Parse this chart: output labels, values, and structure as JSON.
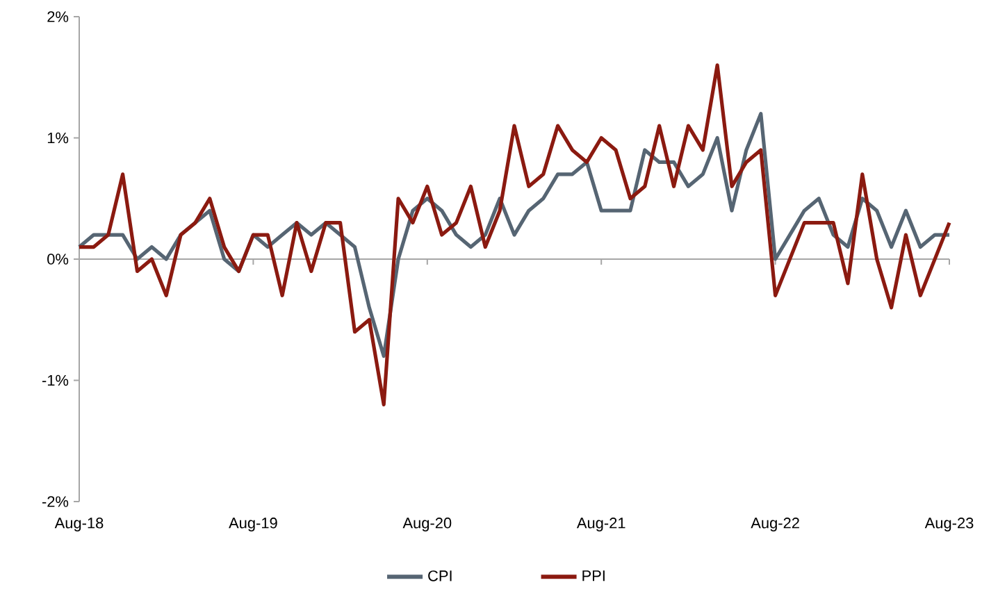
{
  "chart_data": {
    "type": "line",
    "x": [
      "2018-08",
      "2018-09",
      "2018-10",
      "2018-11",
      "2018-12",
      "2019-01",
      "2019-02",
      "2019-03",
      "2019-04",
      "2019-05",
      "2019-06",
      "2019-07",
      "2019-08",
      "2019-09",
      "2019-10",
      "2019-11",
      "2019-12",
      "2020-01",
      "2020-02",
      "2020-03",
      "2020-04",
      "2020-05",
      "2020-06",
      "2020-07",
      "2020-08",
      "2020-09",
      "2020-10",
      "2020-11",
      "2020-12",
      "2021-01",
      "2021-02",
      "2021-03",
      "2021-04",
      "2021-05",
      "2021-06",
      "2021-07",
      "2021-08",
      "2021-09",
      "2021-10",
      "2021-11",
      "2021-12",
      "2022-01",
      "2022-02",
      "2022-03",
      "2022-04",
      "2022-05",
      "2022-06",
      "2022-07",
      "2022-08",
      "2022-09",
      "2022-10",
      "2022-11",
      "2022-12",
      "2023-01",
      "2023-02",
      "2023-03",
      "2023-04",
      "2023-05",
      "2023-06",
      "2023-07",
      "2023-08"
    ],
    "series": [
      {
        "name": "CPI",
        "color": "#566573",
        "values": [
          0.1,
          0.2,
          0.2,
          0.2,
          0.0,
          0.1,
          0.0,
          0.2,
          0.3,
          0.4,
          0.0,
          -0.1,
          0.2,
          0.1,
          0.2,
          0.3,
          0.2,
          0.3,
          0.2,
          0.1,
          -0.4,
          -0.8,
          0.0,
          0.4,
          0.5,
          0.4,
          0.2,
          0.1,
          0.2,
          0.5,
          0.2,
          0.4,
          0.5,
          0.7,
          0.7,
          0.8,
          0.4,
          0.4,
          0.4,
          0.9,
          0.8,
          0.8,
          0.6,
          0.7,
          1.0,
          0.4,
          0.9,
          1.2,
          0.0,
          0.2,
          0.4,
          0.5,
          0.2,
          0.1,
          0.5,
          0.4,
          0.1,
          0.4,
          0.1,
          0.2,
          0.2
        ]
      },
      {
        "name": "PPI",
        "color": "#8b1a10",
        "values": [
          0.1,
          0.1,
          0.2,
          0.7,
          -0.1,
          0.0,
          -0.3,
          0.2,
          0.3,
          0.5,
          0.1,
          -0.1,
          0.2,
          0.2,
          -0.3,
          0.3,
          -0.1,
          0.3,
          0.3,
          -0.6,
          -0.5,
          -1.2,
          0.5,
          0.3,
          0.6,
          0.2,
          0.3,
          0.6,
          0.1,
          0.4,
          1.1,
          0.6,
          0.7,
          1.1,
          0.9,
          0.8,
          1.0,
          0.9,
          0.5,
          0.6,
          1.1,
          0.6,
          1.1,
          0.9,
          1.6,
          0.6,
          0.8,
          0.9,
          -0.3,
          0.0,
          0.3,
          0.3,
          0.3,
          -0.2,
          0.7,
          0.0,
          -0.4,
          0.2,
          -0.3,
          0.0,
          0.3
        ]
      }
    ],
    "xlim": [
      "2018-08",
      "2023-08"
    ],
    "xticks": [
      {
        "value": "2018-08",
        "label": "Aug-18"
      },
      {
        "value": "2019-08",
        "label": "Aug-19"
      },
      {
        "value": "2020-08",
        "label": "Aug-20"
      },
      {
        "value": "2021-08",
        "label": "Aug-21"
      },
      {
        "value": "2022-08",
        "label": "Aug-22"
      },
      {
        "value": "2023-08",
        "label": "Aug-23"
      }
    ],
    "ylim": [
      -2,
      2
    ],
    "yticks": [
      {
        "value": -2,
        "label": "-2%"
      },
      {
        "value": -1,
        "label": "-1%"
      },
      {
        "value": 0,
        "label": "0%"
      },
      {
        "value": 1,
        "label": "1%"
      },
      {
        "value": 2,
        "label": "2%"
      }
    ],
    "legend": "bottom",
    "marker": "none",
    "line_style": "solid"
  }
}
